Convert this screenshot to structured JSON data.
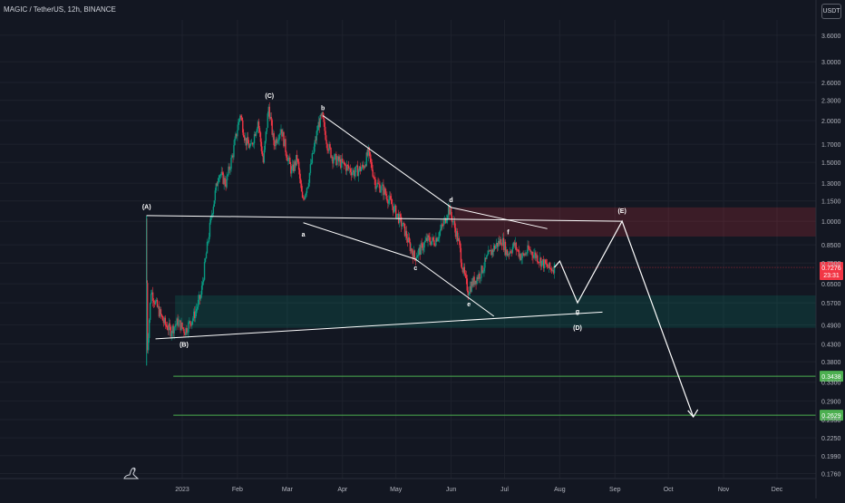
{
  "header": {
    "title": "MAGIC / TetherUS, 12h, BINANCE",
    "currency_button": "USDT"
  },
  "current_price": {
    "value": "0.7276",
    "countdown": "23:31",
    "color": "#f23645"
  },
  "levels": [
    {
      "value": "0.3438",
      "color": "#4caf50"
    },
    {
      "value": "0.2629",
      "color": "#4caf50"
    }
  ],
  "zones": [
    {
      "name": "resistance-zone",
      "from": 0.9,
      "to": 1.1,
      "color": "#f23645"
    },
    {
      "name": "support-zone",
      "from": 0.48,
      "to": 0.6,
      "color": "#089981"
    }
  ],
  "wave_labels": [
    "(A)",
    "(B)",
    "(C)",
    "a",
    "b",
    "c",
    "d",
    "e",
    "f",
    "g",
    "(D)",
    "(E)"
  ],
  "chart_data": {
    "type": "candlestick",
    "scale": "log",
    "ylim": [
      0.17,
      4.0
    ],
    "y_ticks": [
      "3.6000",
      "3.0000",
      "2.6000",
      "2.3000",
      "2.0000",
      "1.7000",
      "1.5000",
      "1.3000",
      "1.1500",
      "1.0000",
      "0.8500",
      "0.7500",
      "0.6500",
      "0.5700",
      "0.4900",
      "0.4300",
      "0.3800",
      "0.3300",
      "0.2900",
      "0.2550",
      "0.2250",
      "0.1990",
      "0.1760"
    ],
    "x_ticks": [
      "2023",
      "Feb",
      "Mar",
      "Apr",
      "May",
      "Jun",
      "Jul",
      "Aug",
      "Sep",
      "Oct",
      "Nov",
      "Dec"
    ],
    "candle_colors": {
      "up": "#089981",
      "down": "#f23645"
    },
    "price_path": [
      [
        "2022-12-12",
        1.02
      ],
      [
        "2022-12-13",
        0.42
      ],
      [
        "2022-12-15",
        0.62
      ],
      [
        "2022-12-18",
        0.56
      ],
      [
        "2022-12-22",
        0.5
      ],
      [
        "2022-12-26",
        0.47
      ],
      [
        "2022-12-30",
        0.5
      ],
      [
        "2023-01-03",
        0.47
      ],
      [
        "2023-01-08",
        0.52
      ],
      [
        "2023-01-12",
        0.6
      ],
      [
        "2023-01-15",
        0.8
      ],
      [
        "2023-01-18",
        1.05
      ],
      [
        "2023-01-22",
        1.4
      ],
      [
        "2023-01-26",
        1.3
      ],
      [
        "2023-01-30",
        1.6
      ],
      [
        "2023-02-03",
        2.1
      ],
      [
        "2023-02-06",
        1.75
      ],
      [
        "2023-02-09",
        1.65
      ],
      [
        "2023-02-13",
        2.0
      ],
      [
        "2023-02-16",
        1.5
      ],
      [
        "2023-02-19",
        2.2
      ],
      [
        "2023-02-22",
        1.7
      ],
      [
        "2023-02-26",
        1.9
      ],
      [
        "2023-03-01",
        1.6
      ],
      [
        "2023-03-04",
        1.4
      ],
      [
        "2023-03-07",
        1.55
      ],
      [
        "2023-03-10",
        1.15
      ],
      [
        "2023-03-13",
        1.3
      ],
      [
        "2023-03-16",
        1.6
      ],
      [
        "2023-03-19",
        1.95
      ],
      [
        "2023-03-21",
        2.05
      ],
      [
        "2023-03-24",
        1.7
      ],
      [
        "2023-03-27",
        1.55
      ],
      [
        "2023-03-31",
        1.5
      ],
      [
        "2023-04-04",
        1.45
      ],
      [
        "2023-04-08",
        1.4
      ],
      [
        "2023-04-13",
        1.45
      ],
      [
        "2023-04-16",
        1.6
      ],
      [
        "2023-04-20",
        1.3
      ],
      [
        "2023-04-24",
        1.25
      ],
      [
        "2023-04-28",
        1.15
      ],
      [
        "2023-05-02",
        1.05
      ],
      [
        "2023-05-06",
        0.95
      ],
      [
        "2023-05-09",
        0.85
      ],
      [
        "2023-05-12",
        0.78
      ],
      [
        "2023-05-15",
        0.82
      ],
      [
        "2023-05-19",
        0.88
      ],
      [
        "2023-05-23",
        0.87
      ],
      [
        "2023-05-26",
        0.93
      ],
      [
        "2023-05-29",
        1.0
      ],
      [
        "2023-05-31",
        1.1
      ],
      [
        "2023-06-03",
        0.98
      ],
      [
        "2023-06-06",
        0.85
      ],
      [
        "2023-06-08",
        0.72
      ],
      [
        "2023-06-11",
        0.62
      ],
      [
        "2023-06-14",
        0.66
      ],
      [
        "2023-06-18",
        0.7
      ],
      [
        "2023-06-22",
        0.78
      ],
      [
        "2023-06-26",
        0.84
      ],
      [
        "2023-06-30",
        0.88
      ],
      [
        "2023-07-03",
        0.8
      ],
      [
        "2023-07-07",
        0.85
      ],
      [
        "2023-07-11",
        0.78
      ],
      [
        "2023-07-15",
        0.82
      ],
      [
        "2023-07-19",
        0.79
      ],
      [
        "2023-07-23",
        0.75
      ],
      [
        "2023-07-27",
        0.72
      ],
      [
        "2023-07-29",
        0.7276
      ]
    ],
    "projection": [
      [
        "2023-07-29",
        0.7276
      ],
      [
        "2023-08-01",
        0.76
      ],
      [
        "2023-08-11",
        0.57
      ],
      [
        "2023-09-05",
        1.0
      ],
      [
        "2023-10-15",
        0.26
      ]
    ],
    "wave_points": [
      {
        "label": "(A)",
        "date": "2022-12-12",
        "price": 1.05,
        "anchor": "top"
      },
      {
        "label": "(B)",
        "date": "2023-01-02",
        "price": 0.455,
        "anchor": "bottom"
      },
      {
        "label": "(C)",
        "date": "2023-02-19",
        "price": 2.25,
        "anchor": "top"
      },
      {
        "label": "a",
        "date": "2023-03-10",
        "price": 0.97,
        "anchor": "bottom"
      },
      {
        "label": "b",
        "date": "2023-03-21",
        "price": 2.07,
        "anchor": "top"
      },
      {
        "label": "c",
        "date": "2023-05-12",
        "price": 0.77,
        "anchor": "bottom"
      },
      {
        "label": "d",
        "date": "2023-06-01",
        "price": 1.1,
        "anchor": "top"
      },
      {
        "label": "e",
        "date": "2023-06-11",
        "price": 0.6,
        "anchor": "bottom"
      },
      {
        "label": "f",
        "date": "2023-07-03",
        "price": 0.88,
        "anchor": "top"
      },
      {
        "label": "g",
        "date": "2023-08-11",
        "price": 0.57,
        "anchor": "bottom"
      },
      {
        "label": "(D)",
        "date": "2023-08-11",
        "price": 0.51,
        "anchor": "bottom"
      },
      {
        "label": "(E)",
        "date": "2023-09-05",
        "price": 1.02,
        "anchor": "top"
      }
    ],
    "trendlines": [
      {
        "from": [
          "2022-12-12",
          1.04
        ],
        "to": [
          "2023-09-05",
          1.0
        ]
      },
      {
        "from": [
          "2022-12-17",
          0.445
        ],
        "to": [
          "2023-08-25",
          0.535
        ]
      },
      {
        "from": [
          "2023-03-21",
          2.07
        ],
        "to": [
          "2023-06-01",
          1.1
        ]
      },
      {
        "from": [
          "2023-06-01",
          1.1
        ],
        "to": [
          "2023-07-25",
          0.95
        ]
      },
      {
        "from": [
          "2023-03-10",
          0.99
        ],
        "to": [
          "2023-05-12",
          0.77
        ]
      },
      {
        "from": [
          "2023-05-12",
          0.77
        ],
        "to": [
          "2023-06-25",
          0.52
        ]
      }
    ]
  }
}
